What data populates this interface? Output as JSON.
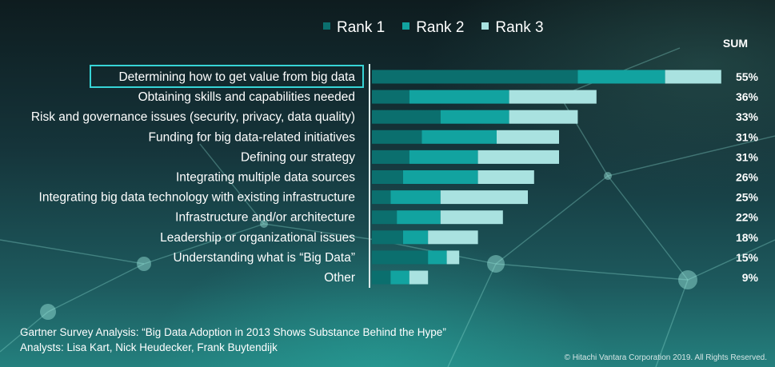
{
  "colors": {
    "rank1": "#0b6f6e",
    "rank2": "#12a3a0",
    "rank3": "#a9e2e0",
    "highlight_border": "#37d4d6"
  },
  "legend": {
    "items": [
      {
        "label": "Rank 1",
        "color": "#0b6f6e"
      },
      {
        "label": "Rank 2",
        "color": "#12a3a0"
      },
      {
        "label": "Rank 3",
        "color": "#a9e2e0"
      }
    ]
  },
  "sum_header": "SUM",
  "footer": {
    "line1": "Gartner Survey Analysis: “Big Data Adoption in 2013 Shows Substance Behind the Hype”",
    "line2": "Analysts: Lisa Kart, Nick Heudecker, Frank Buytendijk"
  },
  "copyright": "© Hitachi Vantara Corporation 2019. All Rights Reserved.",
  "chart_data": {
    "type": "bar",
    "orientation": "horizontal",
    "stacked": true,
    "categories": [
      "Determining how to get value from big data",
      "Obtaining skills and capabilities needed",
      "Risk and governance issues (security, privacy, data quality)",
      "Funding for big data-related initiatives",
      "Defining our strategy",
      "Integrating multiple data sources",
      "Integrating big data technology with existing infrastructure",
      "Infrastructure and/or architecture",
      "Leadership or organizational issues",
      "Understanding what is “Big Data”",
      "Other"
    ],
    "highlighted_category": "Determining how to get value from big data",
    "series": [
      {
        "name": "Rank 1",
        "values": [
          33,
          6,
          11,
          8,
          6,
          5,
          3,
          4,
          5,
          9,
          3
        ]
      },
      {
        "name": "Rank 2",
        "values": [
          14,
          16,
          11,
          12,
          11,
          12,
          8,
          7,
          4,
          3,
          3
        ]
      },
      {
        "name": "Rank 3",
        "values": [
          9,
          14,
          11,
          10,
          13,
          9,
          14,
          10,
          8,
          2,
          3
        ]
      }
    ],
    "sums": [
      "55%",
      "36%",
      "33%",
      "31%",
      "31%",
      "26%",
      "25%",
      "22%",
      "18%",
      "15%",
      "9%"
    ],
    "xlim": [
      0,
      56
    ],
    "legend_position": "top"
  }
}
